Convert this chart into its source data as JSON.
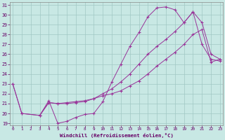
{
  "bg_color": "#c8e8e4",
  "grid_color": "#a0c8c4",
  "line_color": "#993399",
  "xlim": [
    0,
    23
  ],
  "ylim": [
    19,
    31
  ],
  "xticks": [
    0,
    1,
    2,
    3,
    4,
    5,
    6,
    7,
    8,
    9,
    10,
    11,
    12,
    13,
    14,
    15,
    16,
    17,
    18,
    19,
    20,
    21,
    22,
    23
  ],
  "yticks": [
    19,
    20,
    21,
    22,
    23,
    24,
    25,
    26,
    27,
    28,
    29,
    30,
    31
  ],
  "xlabel": "Windchill (Refroidissement éolien,°C)",
  "series1_x": [
    0,
    1,
    3,
    4,
    5,
    6,
    7,
    8,
    9,
    10,
    11,
    12,
    13,
    14,
    15,
    16,
    17,
    18,
    19,
    20,
    21,
    22,
    23
  ],
  "series1_y": [
    23.0,
    20.0,
    19.8,
    21.3,
    19.0,
    19.2,
    19.6,
    19.9,
    20.0,
    21.2,
    23.2,
    25.0,
    26.8,
    28.2,
    29.8,
    30.7,
    30.8,
    30.5,
    29.2,
    30.3,
    27.0,
    25.5,
    25.3
  ],
  "series2_x": [
    0,
    1,
    3,
    4,
    5,
    6,
    7,
    8,
    9,
    10,
    11,
    12,
    13,
    14,
    15,
    16,
    17,
    18,
    19,
    20,
    21,
    22,
    23
  ],
  "series2_y": [
    23.0,
    20.0,
    19.8,
    21.1,
    21.0,
    21.0,
    21.1,
    21.2,
    21.5,
    22.0,
    22.5,
    23.2,
    24.0,
    25.0,
    26.0,
    26.8,
    27.5,
    28.3,
    29.2,
    30.3,
    29.2,
    26.0,
    25.5
  ],
  "series3_x": [
    3,
    4,
    5,
    6,
    7,
    8,
    9,
    10,
    11,
    12,
    13,
    14,
    15,
    16,
    17,
    18,
    19,
    20,
    21,
    22,
    23
  ],
  "series3_y": [
    19.8,
    21.1,
    21.0,
    21.1,
    21.2,
    21.3,
    21.5,
    21.8,
    22.0,
    22.3,
    22.8,
    23.3,
    24.0,
    24.8,
    25.5,
    26.2,
    27.0,
    28.0,
    28.5,
    25.2,
    25.5
  ]
}
